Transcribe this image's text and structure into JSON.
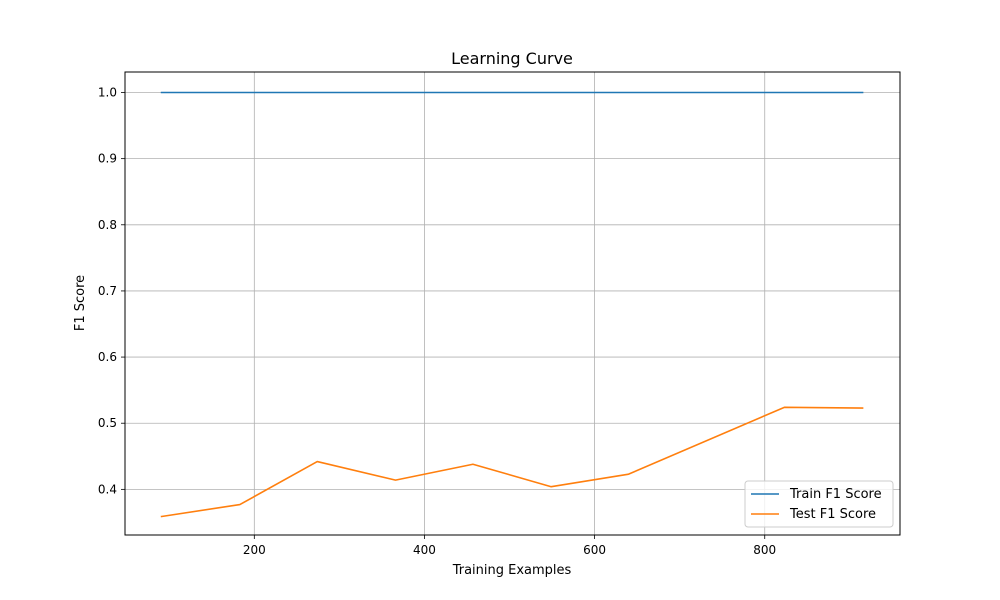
{
  "chart_data": {
    "type": "line",
    "title": "Learning Curve",
    "xlabel": "Training Examples",
    "ylabel": "F1 Score",
    "xlim": [
      48,
      959
    ],
    "ylim": [
      0.331,
      1.031
    ],
    "xticks": [
      200,
      400,
      600,
      800
    ],
    "yticks": [
      0.4,
      0.5,
      0.6,
      0.7,
      0.8,
      0.9,
      1.0
    ],
    "xtick_labels": [
      "200",
      "400",
      "600",
      "800"
    ],
    "ytick_labels": [
      "0.4",
      "0.5",
      "0.6",
      "0.7",
      "0.8",
      "0.9",
      "1.0"
    ],
    "grid": true,
    "legend_position": "lower-right",
    "x": [
      91,
      183,
      274,
      366,
      457,
      549,
      640,
      823,
      915
    ],
    "series": [
      {
        "name": "Train F1 Score",
        "color": "#1f77b4",
        "values": [
          1.0,
          1.0,
          1.0,
          1.0,
          1.0,
          1.0,
          1.0,
          1.0,
          1.0
        ]
      },
      {
        "name": "Test F1 Score",
        "color": "#ff7f0e",
        "values": [
          0.359,
          0.377,
          0.442,
          0.414,
          0.438,
          0.404,
          0.423,
          0.524,
          0.523
        ]
      }
    ]
  }
}
